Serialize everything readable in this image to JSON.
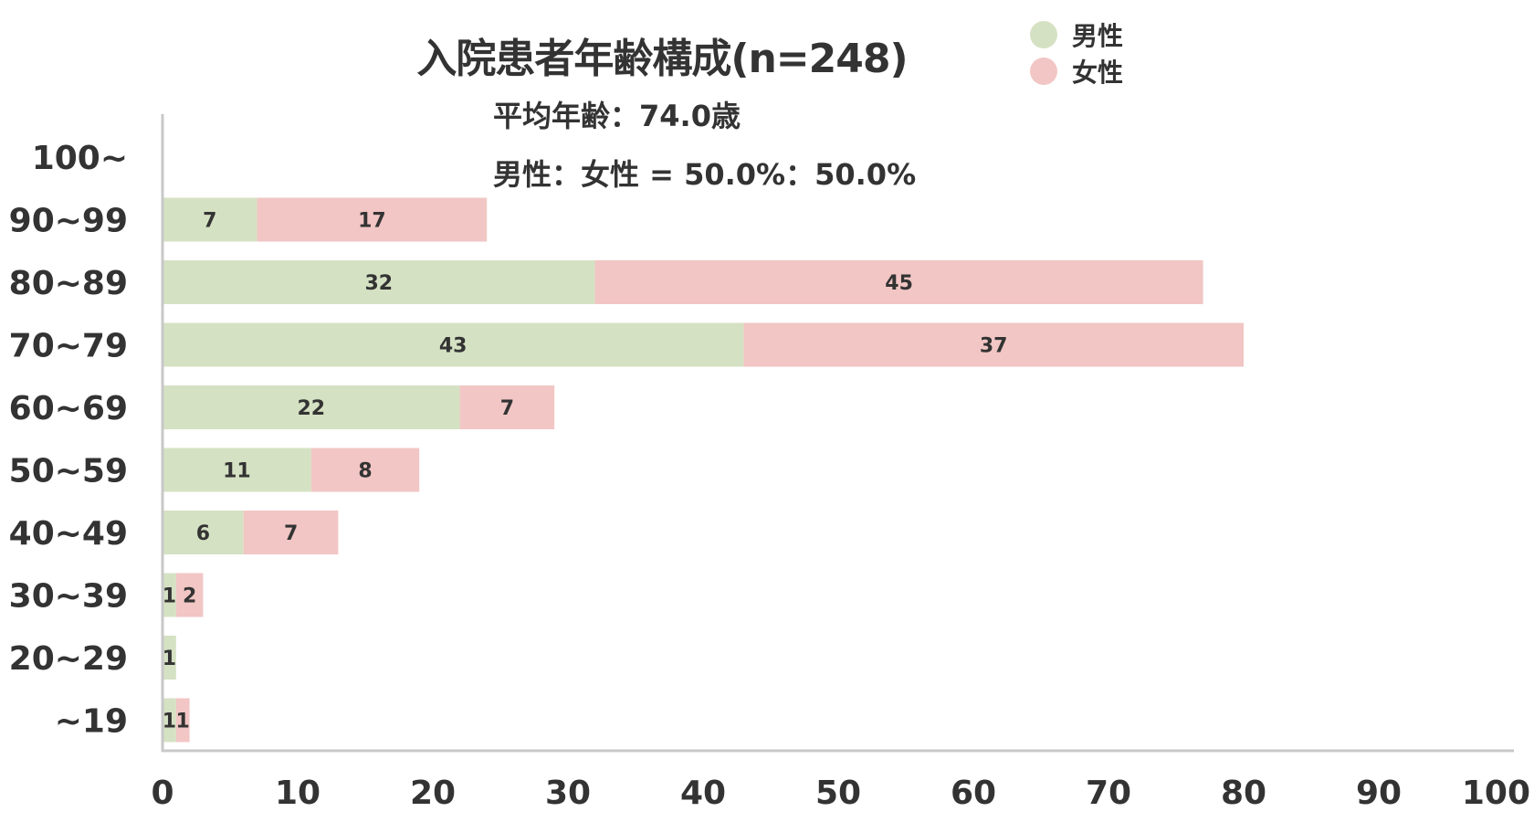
{
  "header": {
    "title": "入院患者年齢構成(n=248)",
    "average_age": "平均年齢：74.0歳",
    "gender_ratio": "男性：女性 = 50.0%：50.0%"
  },
  "legend": [
    {
      "label": "男性",
      "color": "#d5e1c3"
    },
    {
      "label": "女性",
      "color": "#f1c6c4"
    }
  ],
  "chart_data": {
    "type": "bar",
    "orientation": "horizontal",
    "stacked": true,
    "title": "入院患者年齢構成(n=248)",
    "categories": [
      "100~",
      "90~99",
      "80~89",
      "70~79",
      "60~69",
      "50~59",
      "40~49",
      "30~39",
      "20~29",
      "~19"
    ],
    "series": [
      {
        "name": "男性",
        "color": "#d5e1c3",
        "values": [
          0,
          7,
          32,
          43,
          22,
          11,
          6,
          1,
          1,
          1
        ]
      },
      {
        "name": "女性",
        "color": "#f1c6c4",
        "values": [
          0,
          17,
          45,
          37,
          7,
          8,
          7,
          2,
          0,
          1
        ]
      }
    ],
    "xlim": [
      0,
      100
    ],
    "xticks": [
      0,
      10,
      20,
      30,
      40,
      50,
      60,
      70,
      80,
      90,
      100
    ],
    "grid": false,
    "legend_position": "top-right",
    "data_labels": true
  }
}
